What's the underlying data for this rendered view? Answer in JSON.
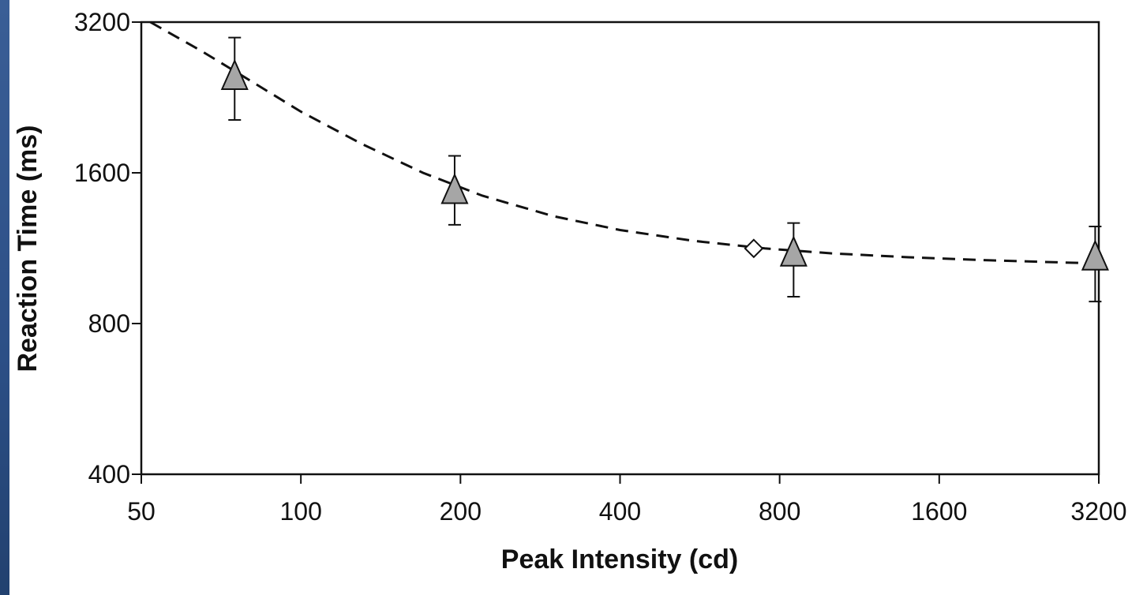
{
  "chart_data": {
    "type": "scatter",
    "xlabel": "Peak Intensity (cd)",
    "ylabel": "Reaction Time (ms)",
    "xscale": "log2",
    "yscale": "log2",
    "xlim": [
      50,
      3200
    ],
    "ylim": [
      400,
      3200
    ],
    "xticks": [
      "50",
      "100",
      "200",
      "400",
      "800",
      "1600",
      "3200"
    ],
    "yticks": [
      "400",
      "800",
      "1600",
      "3200"
    ],
    "series": [
      {
        "marker": "triangle",
        "color": "#a6a6a6",
        "points": [
          {
            "x": 75,
            "y": 2500,
            "err_low": 2040,
            "err_high": 2980
          },
          {
            "x": 195,
            "y": 1480,
            "err_low": 1260,
            "err_high": 1730
          },
          {
            "x": 850,
            "y": 1110,
            "err_low": 905,
            "err_high": 1270
          },
          {
            "x": 3150,
            "y": 1090,
            "err_low": 885,
            "err_high": 1250
          }
        ]
      },
      {
        "marker": "diamond",
        "color": "#ffffff",
        "points": [
          {
            "x": 715,
            "y": 1130
          }
        ]
      }
    ],
    "fit_curve": {
      "style": "dashed",
      "points": [
        {
          "x": 52,
          "y": 3200
        },
        {
          "x": 65,
          "y": 2800
        },
        {
          "x": 80,
          "y": 2450
        },
        {
          "x": 100,
          "y": 2120
        },
        {
          "x": 130,
          "y": 1830
        },
        {
          "x": 170,
          "y": 1600
        },
        {
          "x": 220,
          "y": 1440
        },
        {
          "x": 300,
          "y": 1310
        },
        {
          "x": 400,
          "y": 1230
        },
        {
          "x": 550,
          "y": 1170
        },
        {
          "x": 750,
          "y": 1130
        },
        {
          "x": 1000,
          "y": 1105
        },
        {
          "x": 1400,
          "y": 1085
        },
        {
          "x": 2000,
          "y": 1070
        },
        {
          "x": 2700,
          "y": 1060
        },
        {
          "x": 3200,
          "y": 1055
        }
      ]
    },
    "grid": false
  }
}
